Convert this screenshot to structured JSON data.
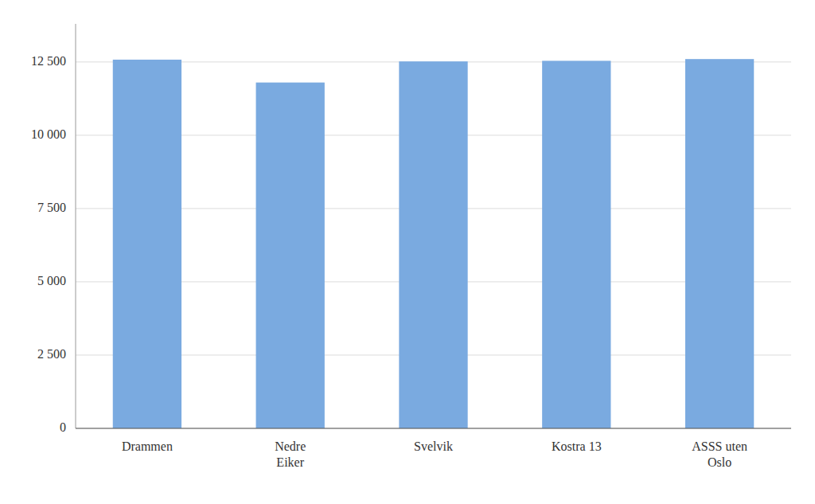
{
  "chart_data": {
    "type": "bar",
    "categories": [
      "Drammen",
      "Nedre\nEiker",
      "Svelvik",
      "Kostra 13",
      "ASSS uten\nOslo"
    ],
    "values": [
      12580,
      11800,
      12520,
      12540,
      12600
    ],
    "color": "#7aaae0",
    "ylim": [
      0,
      13800
    ],
    "yticks": [
      0,
      {
        "value": 2500,
        "label": "2 500"
      },
      {
        "value": 5000,
        "label": "5 000"
      },
      {
        "value": 7500,
        "label": "7 500"
      },
      {
        "value": 10000,
        "label": "10 000"
      },
      {
        "value": 12500,
        "label": "12 500"
      }
    ],
    "grid": true
  }
}
